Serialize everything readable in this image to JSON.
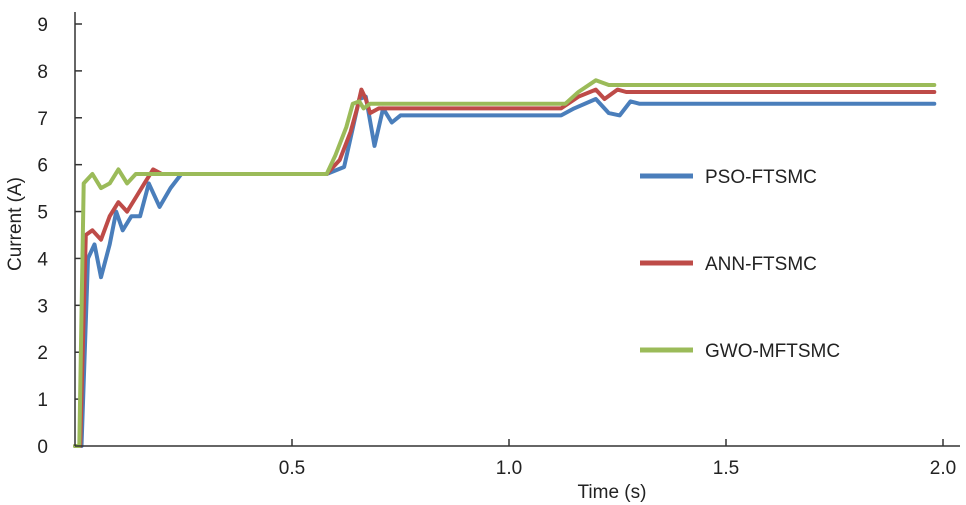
{
  "chart_data": {
    "type": "line",
    "title": "",
    "xlabel": "Time (s)",
    "ylabel": "Current (A)",
    "xlim": [
      0,
      2.0
    ],
    "ylim": [
      0,
      9
    ],
    "x_ticks": [
      0.5,
      1.0,
      1.5,
      2.0
    ],
    "x_tick_labels": [
      "0.5",
      "1.0",
      "1.5",
      "2.0"
    ],
    "y_ticks": [
      0,
      1,
      2,
      3,
      4,
      5,
      6,
      7,
      8,
      9
    ],
    "y_tick_labels": [
      "0",
      "1",
      "2",
      "3",
      "4",
      "5",
      "6",
      "7",
      "8",
      "9"
    ],
    "grid": false,
    "legend_position": "right",
    "series": [
      {
        "name": "PSO-FTSMC",
        "color": "#4a7ebb",
        "points": [
          [
            0.0,
            0
          ],
          [
            0.015,
            0
          ],
          [
            0.03,
            4.0
          ],
          [
            0.045,
            4.3
          ],
          [
            0.06,
            3.6
          ],
          [
            0.08,
            4.3
          ],
          [
            0.095,
            5.0
          ],
          [
            0.11,
            4.6
          ],
          [
            0.13,
            4.9
          ],
          [
            0.15,
            4.9
          ],
          [
            0.17,
            5.6
          ],
          [
            0.195,
            5.1
          ],
          [
            0.22,
            5.5
          ],
          [
            0.245,
            5.8
          ],
          [
            0.3,
            5.8
          ],
          [
            0.58,
            5.8
          ],
          [
            0.62,
            5.95
          ],
          [
            0.655,
            7.4
          ],
          [
            0.67,
            7.45
          ],
          [
            0.69,
            6.4
          ],
          [
            0.71,
            7.2
          ],
          [
            0.73,
            6.9
          ],
          [
            0.75,
            7.05
          ],
          [
            0.9,
            7.05
          ],
          [
            1.12,
            7.05
          ],
          [
            1.15,
            7.2
          ],
          [
            1.2,
            7.4
          ],
          [
            1.23,
            7.1
          ],
          [
            1.255,
            7.05
          ],
          [
            1.28,
            7.35
          ],
          [
            1.3,
            7.3
          ],
          [
            1.6,
            7.3
          ],
          [
            1.98,
            7.3
          ]
        ]
      },
      {
        "name": "ANN-FTSMC",
        "color": "#be4b48",
        "points": [
          [
            0.0,
            0
          ],
          [
            0.012,
            0
          ],
          [
            0.025,
            4.5
          ],
          [
            0.04,
            4.6
          ],
          [
            0.06,
            4.4
          ],
          [
            0.08,
            4.9
          ],
          [
            0.1,
            5.2
          ],
          [
            0.12,
            5.0
          ],
          [
            0.14,
            5.3
          ],
          [
            0.16,
            5.6
          ],
          [
            0.18,
            5.9
          ],
          [
            0.2,
            5.8
          ],
          [
            0.22,
            5.8
          ],
          [
            0.4,
            5.8
          ],
          [
            0.58,
            5.8
          ],
          [
            0.61,
            6.1
          ],
          [
            0.635,
            6.7
          ],
          [
            0.65,
            7.2
          ],
          [
            0.66,
            7.6
          ],
          [
            0.67,
            7.4
          ],
          [
            0.68,
            7.1
          ],
          [
            0.7,
            7.2
          ],
          [
            0.9,
            7.2
          ],
          [
            1.12,
            7.2
          ],
          [
            1.16,
            7.45
          ],
          [
            1.2,
            7.6
          ],
          [
            1.22,
            7.4
          ],
          [
            1.25,
            7.6
          ],
          [
            1.27,
            7.55
          ],
          [
            1.5,
            7.55
          ],
          [
            1.98,
            7.55
          ]
        ]
      },
      {
        "name": "GWO-MFTSMC",
        "color": "#9bbb59",
        "points": [
          [
            0.0,
            0
          ],
          [
            0.01,
            0
          ],
          [
            0.02,
            5.6
          ],
          [
            0.04,
            5.8
          ],
          [
            0.06,
            5.5
          ],
          [
            0.08,
            5.6
          ],
          [
            0.1,
            5.9
          ],
          [
            0.12,
            5.6
          ],
          [
            0.14,
            5.8
          ],
          [
            0.16,
            5.8
          ],
          [
            0.5,
            5.8
          ],
          [
            0.58,
            5.8
          ],
          [
            0.6,
            6.2
          ],
          [
            0.625,
            6.8
          ],
          [
            0.64,
            7.3
          ],
          [
            0.655,
            7.35
          ],
          [
            0.665,
            7.2
          ],
          [
            0.68,
            7.3
          ],
          [
            0.9,
            7.3
          ],
          [
            1.13,
            7.3
          ],
          [
            1.16,
            7.55
          ],
          [
            1.2,
            7.8
          ],
          [
            1.23,
            7.7
          ],
          [
            1.5,
            7.7
          ],
          [
            1.98,
            7.7
          ]
        ]
      }
    ]
  }
}
